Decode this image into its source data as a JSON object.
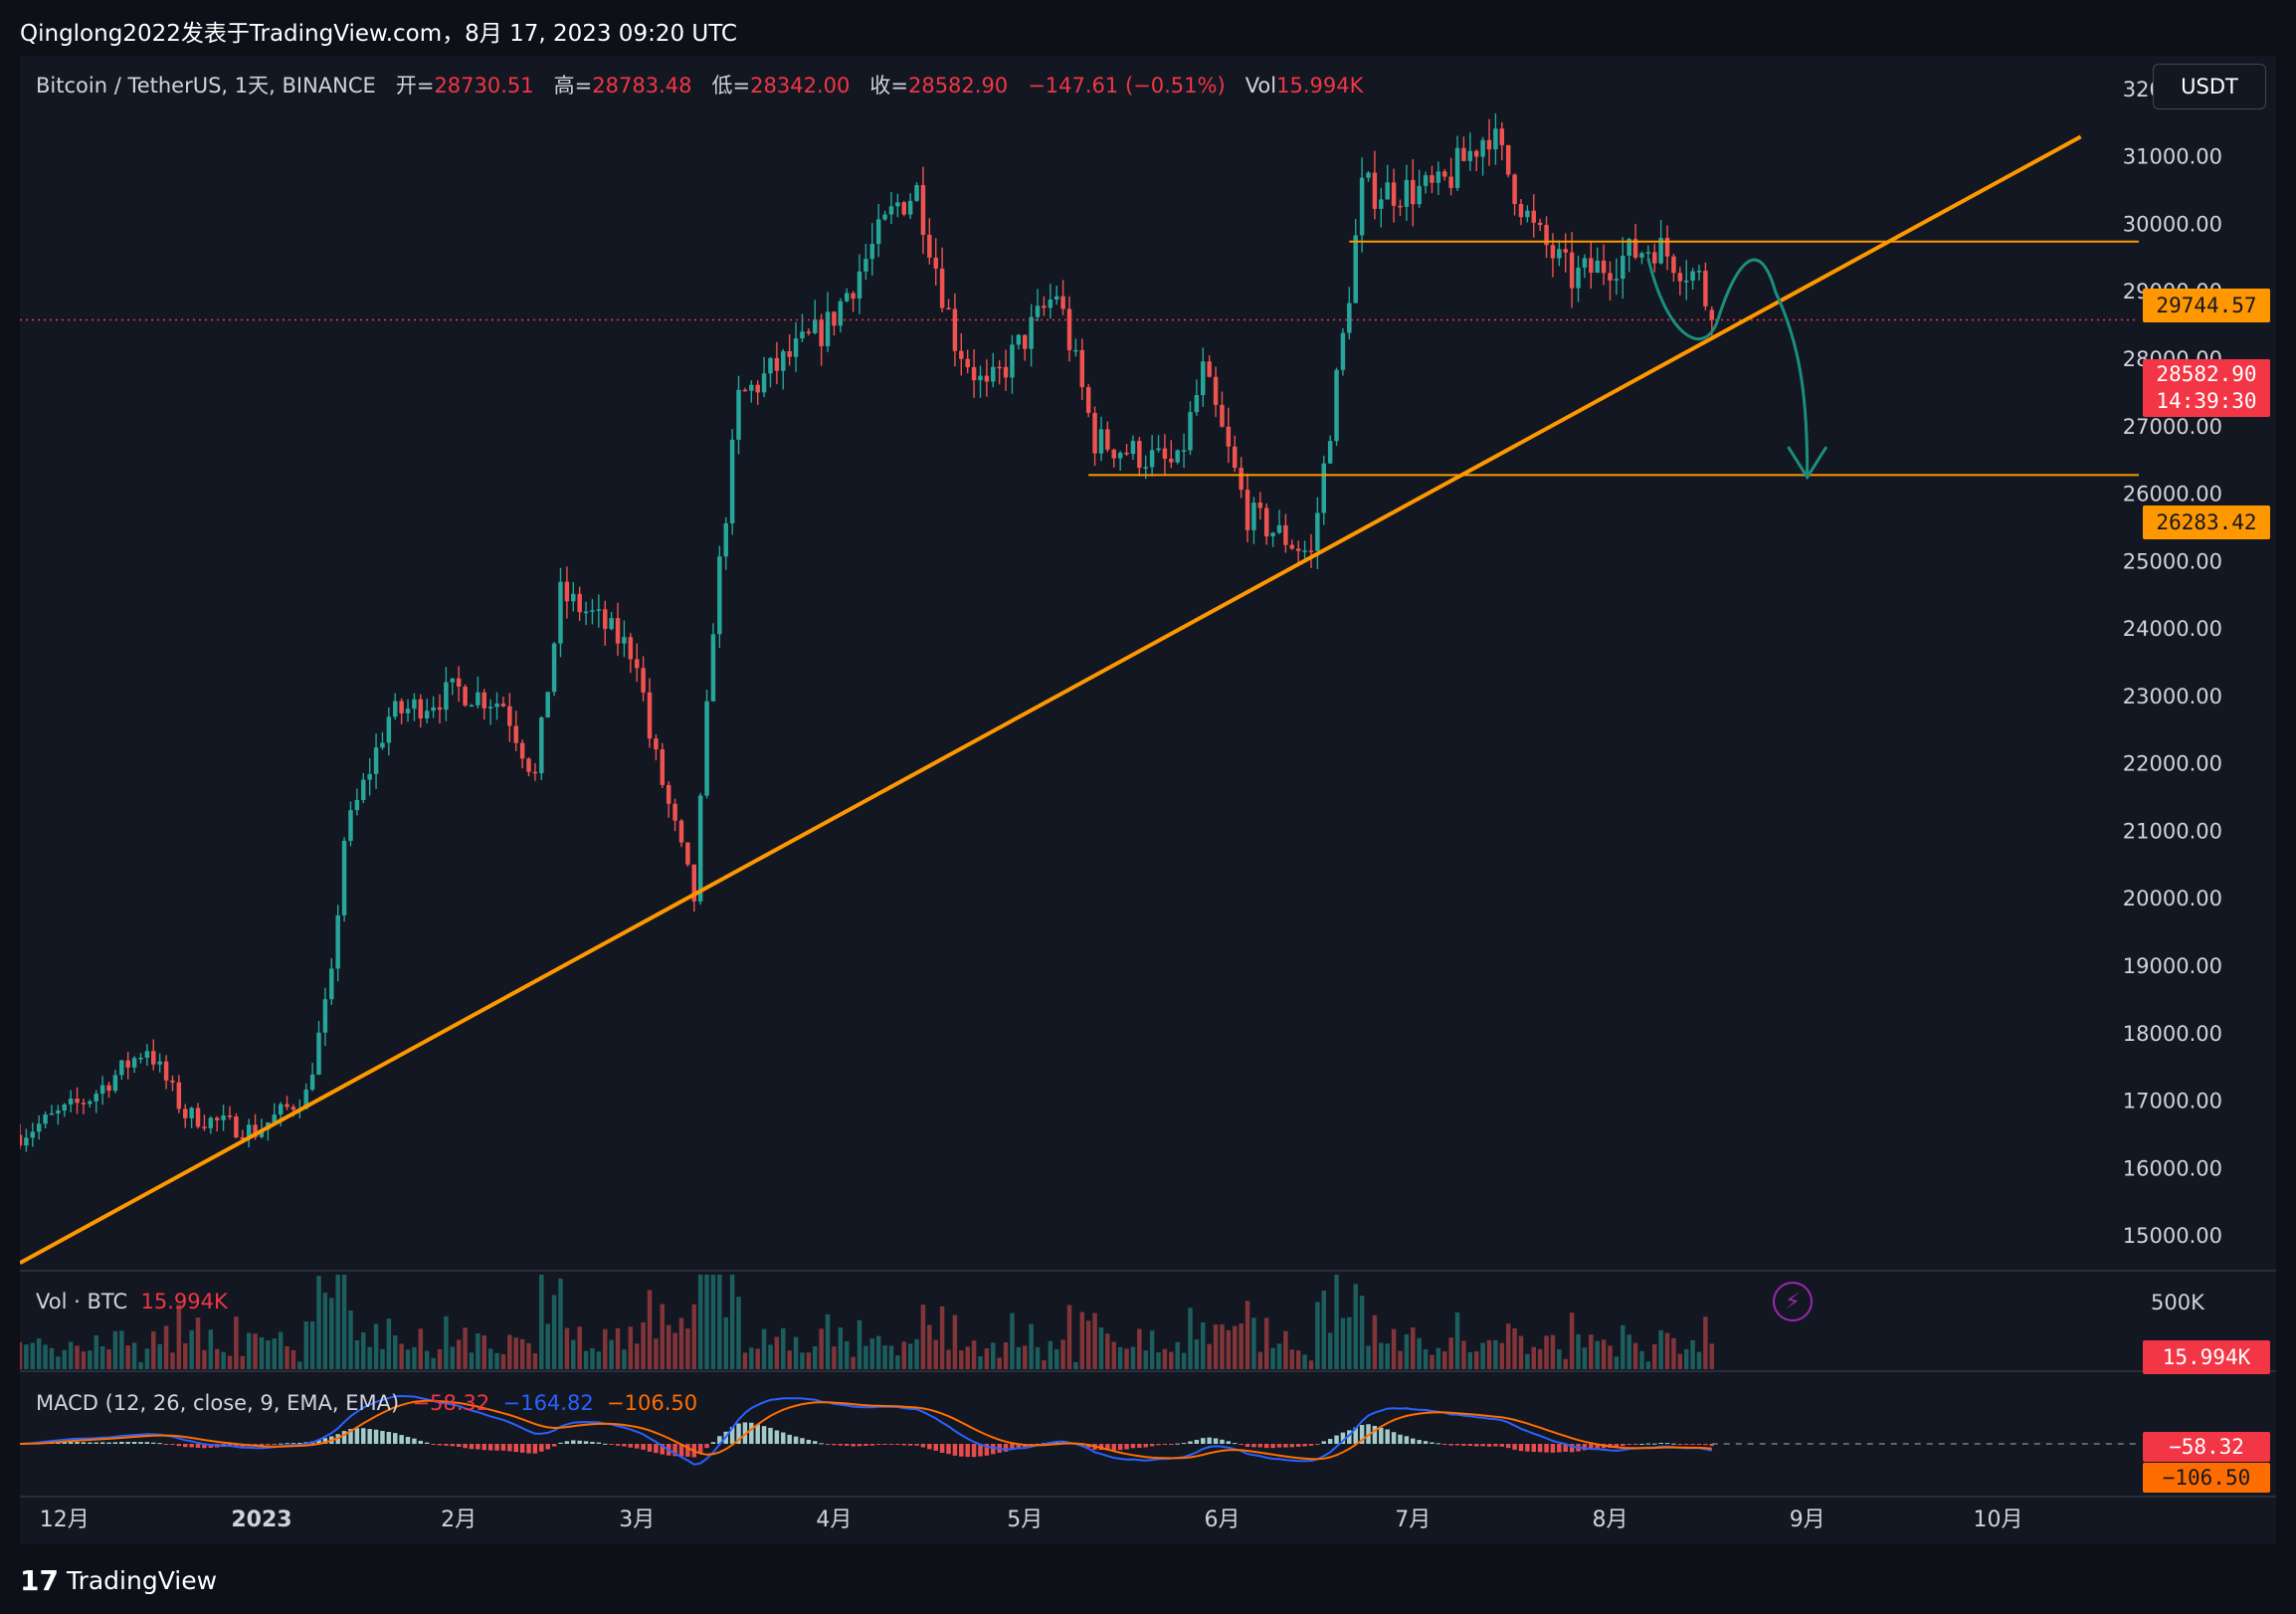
{
  "page": {
    "title": "Qinglong2022发表于TradingView.com，8月 17, 2023 09:20 UTC"
  },
  "legend": {
    "symbol": "Bitcoin / TetherUS, 1天, BINANCE",
    "open_label": "开=",
    "open_value": "28730.51",
    "high_label": "高=",
    "high_value": "28783.48",
    "low_label": "低=",
    "low_value": "28342.00",
    "close_label": "收=",
    "close_value": "28582.90",
    "change": "−147.61 (−0.51%)",
    "vol_label": "Vol",
    "vol_value": "15.994K"
  },
  "volume_legend": {
    "label": "Vol · BTC",
    "value": "15.994K"
  },
  "macd_legend": {
    "label": "MACD (12, 26, close, 9, EMA, EMA)",
    "hist": "−58.32",
    "macd": "−164.82",
    "signal": "−106.50"
  },
  "currency": "USDT",
  "price_tags": {
    "resistance": "29744.57",
    "last_price": "28582.90",
    "countdown": "14:39:30",
    "support": "26283.42",
    "volume": "15.994K",
    "macd_hist": "−58.32",
    "macd_signal": "−106.50"
  },
  "footer": {
    "brand": "TradingView"
  },
  "colors": {
    "up": "#26a69a",
    "down": "#ef5350",
    "trendline": "#ff9800",
    "drawing": "#1b8e7e",
    "macd": "#2962ff",
    "signal": "#ff6d00"
  },
  "chart_data": {
    "type": "candlestick",
    "title": "Bitcoin / TetherUS, 1天, BINANCE",
    "y_range": [
      14500,
      32500
    ],
    "y_ticks": [
      15000,
      16000,
      17000,
      18000,
      19000,
      20000,
      21000,
      22000,
      23000,
      24000,
      25000,
      26000,
      27000,
      28000,
      29000,
      30000,
      31000,
      32000
    ],
    "x_ticks": [
      {
        "label": "12月",
        "date": "2022-12-01"
      },
      {
        "label": "2023",
        "date": "2023-01-01"
      },
      {
        "label": "2月",
        "date": "2023-02-01"
      },
      {
        "label": "3月",
        "date": "2023-03-01"
      },
      {
        "label": "4月",
        "date": "2023-04-01"
      },
      {
        "label": "5月",
        "date": "2023-05-01"
      },
      {
        "label": "6月",
        "date": "2023-06-01"
      },
      {
        "label": "7月",
        "date": "2023-07-01"
      },
      {
        "label": "8月",
        "date": "2023-08-01"
      },
      {
        "label": "9月",
        "date": "2023-09-01"
      },
      {
        "label": "10月",
        "date": "2023-10-01"
      }
    ],
    "date_range": [
      "2022-11-24",
      "2023-10-20"
    ],
    "series_anchors": [
      {
        "date": "2022-11-24",
        "close": 16500
      },
      {
        "date": "2022-12-05",
        "close": 17050
      },
      {
        "date": "2022-12-14",
        "close": 17800
      },
      {
        "date": "2022-12-20",
        "close": 16800
      },
      {
        "date": "2022-12-31",
        "close": 16550
      },
      {
        "date": "2023-01-08",
        "close": 17100
      },
      {
        "date": "2023-01-12",
        "close": 18800
      },
      {
        "date": "2023-01-14",
        "close": 20900
      },
      {
        "date": "2023-01-21",
        "close": 22700
      },
      {
        "date": "2023-02-01",
        "close": 23100
      },
      {
        "date": "2023-02-08",
        "close": 22900
      },
      {
        "date": "2023-02-13",
        "close": 21800
      },
      {
        "date": "2023-02-17",
        "close": 24500
      },
      {
        "date": "2023-02-22",
        "close": 24200
      },
      {
        "date": "2023-03-01",
        "close": 23600
      },
      {
        "date": "2023-03-03",
        "close": 22400
      },
      {
        "date": "2023-03-10",
        "close": 20000
      },
      {
        "date": "2023-03-13",
        "close": 24100
      },
      {
        "date": "2023-03-17",
        "close": 27400
      },
      {
        "date": "2023-03-22",
        "close": 27800
      },
      {
        "date": "2023-03-31",
        "close": 28500
      },
      {
        "date": "2023-04-11",
        "close": 30300
      },
      {
        "date": "2023-04-14",
        "close": 30500
      },
      {
        "date": "2023-04-20",
        "close": 28300
      },
      {
        "date": "2023-04-25",
        "close": 27500
      },
      {
        "date": "2023-05-06",
        "close": 29000
      },
      {
        "date": "2023-05-12",
        "close": 26800
      },
      {
        "date": "2023-05-25",
        "close": 26400
      },
      {
        "date": "2023-05-29",
        "close": 27800
      },
      {
        "date": "2023-06-05",
        "close": 25700
      },
      {
        "date": "2023-06-15",
        "close": 25100
      },
      {
        "date": "2023-06-20",
        "close": 28300
      },
      {
        "date": "2023-06-23",
        "close": 30500
      },
      {
        "date": "2023-07-05",
        "close": 30500
      },
      {
        "date": "2023-07-13",
        "close": 31400
      },
      {
        "date": "2023-07-20",
        "close": 29900
      },
      {
        "date": "2023-07-26",
        "close": 29200
      },
      {
        "date": "2023-08-08",
        "close": 29700
      },
      {
        "date": "2023-08-15",
        "close": 29200
      },
      {
        "date": "2023-08-17",
        "close": 28582.9
      }
    ],
    "last_candle": {
      "date": "2023-08-17",
      "open": 28730.51,
      "high": 28783.48,
      "low": 28342.0,
      "close": 28582.9,
      "volume": "15.994K"
    },
    "horizontal_levels": [
      {
        "value": 29744.57,
        "from": "2023-06-21",
        "color": "#ff9800"
      },
      {
        "value": 26283.42,
        "from": "2023-05-11",
        "color": "#ff9800"
      }
    ],
    "trendline": {
      "from": {
        "date": "2022-11-24",
        "price": 14600
      },
      "to": {
        "date": "2023-10-14",
        "price": 31300
      }
    },
    "volume_axis": {
      "ticks": [
        {
          "label": "500K",
          "value": 500000
        }
      ]
    },
    "grid": false
  }
}
